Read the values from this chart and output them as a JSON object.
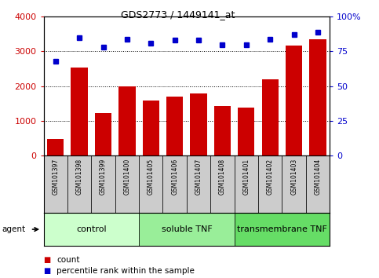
{
  "title": "GDS2773 / 1449141_at",
  "samples": [
    "GSM101397",
    "GSM101398",
    "GSM101399",
    "GSM101400",
    "GSM101405",
    "GSM101406",
    "GSM101407",
    "GSM101408",
    "GSM101401",
    "GSM101402",
    "GSM101403",
    "GSM101404"
  ],
  "counts": [
    480,
    2540,
    1230,
    2000,
    1580,
    1700,
    1800,
    1440,
    1380,
    2200,
    3180,
    3340
  ],
  "percentiles": [
    68,
    85,
    78,
    83.5,
    81,
    83,
    83,
    80,
    80,
    84,
    87,
    89
  ],
  "ylim_left": [
    0,
    4000
  ],
  "ylim_right": [
    0,
    100
  ],
  "yticks_left": [
    0,
    1000,
    2000,
    3000,
    4000
  ],
  "yticks_right": [
    0,
    25,
    50,
    75,
    100
  ],
  "bar_color": "#cc0000",
  "dot_color": "#0000cc",
  "groups": [
    {
      "label": "control",
      "start": 0,
      "end": 4,
      "color": "#ccffcc"
    },
    {
      "label": "soluble TNF",
      "start": 4,
      "end": 8,
      "color": "#99ee99"
    },
    {
      "label": "transmembrane TNF",
      "start": 8,
      "end": 12,
      "color": "#66dd66"
    }
  ],
  "legend_count_label": "count",
  "legend_pct_label": "percentile rank within the sample",
  "agent_label": "agent"
}
